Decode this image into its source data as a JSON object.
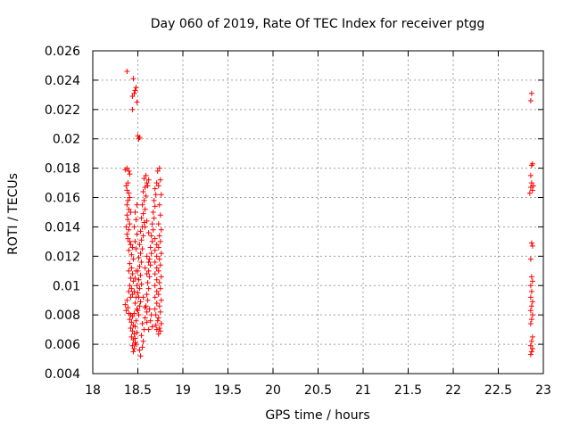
{
  "chart_data": {
    "type": "scatter",
    "title": "Day 060 of 2019, Rate Of TEC Index for receiver ptgg",
    "xlabel": "GPS time / hours",
    "ylabel": "ROTI / TECUs",
    "xlim": [
      18,
      23
    ],
    "ylim": [
      0.004,
      0.026
    ],
    "xticks": [
      "18",
      "18.5",
      "19",
      "19.5",
      "20",
      "20.5",
      "21",
      "21.5",
      "22",
      "22.5",
      "23"
    ],
    "yticks": [
      "0.004",
      "0.006",
      "0.008",
      "0.01",
      "0.012",
      "0.014",
      "0.016",
      "0.018",
      "0.02",
      "0.022",
      "0.024",
      "0.026"
    ],
    "grid": true,
    "marker": "+",
    "series_color": "#ff0000",
    "series": [
      {
        "name": "ROTI",
        "points": [
          [
            18.38,
            0.0246
          ],
          [
            18.45,
            0.0241
          ],
          [
            18.47,
            0.0233
          ],
          [
            18.46,
            0.0231
          ],
          [
            18.44,
            0.0229
          ],
          [
            18.48,
            0.0235
          ],
          [
            18.49,
            0.0225
          ],
          [
            18.44,
            0.022
          ],
          [
            18.5,
            0.0202
          ],
          [
            18.51,
            0.02
          ],
          [
            18.52,
            0.0201
          ],
          [
            18.38,
            0.018
          ],
          [
            18.4,
            0.0178
          ],
          [
            18.36,
            0.0179
          ],
          [
            18.41,
            0.0176
          ],
          [
            18.39,
            0.017
          ],
          [
            18.37,
            0.0168
          ],
          [
            18.38,
            0.0165
          ],
          [
            18.4,
            0.0163
          ],
          [
            18.41,
            0.016
          ],
          [
            18.39,
            0.0158
          ],
          [
            18.38,
            0.0155
          ],
          [
            18.4,
            0.0152
          ],
          [
            18.42,
            0.015
          ],
          [
            18.38,
            0.0148
          ],
          [
            18.39,
            0.0145
          ],
          [
            18.41,
            0.0142
          ],
          [
            18.37,
            0.014
          ],
          [
            18.4,
            0.0138
          ],
          [
            18.38,
            0.0135
          ],
          [
            18.39,
            0.0132
          ],
          [
            18.41,
            0.013
          ],
          [
            18.42,
            0.0128
          ],
          [
            18.44,
            0.0126
          ],
          [
            18.4,
            0.0124
          ],
          [
            18.43,
            0.0121
          ],
          [
            18.45,
            0.0118
          ],
          [
            18.41,
            0.0115
          ],
          [
            18.43,
            0.0112
          ],
          [
            18.4,
            0.011
          ],
          [
            18.44,
            0.0108
          ],
          [
            18.42,
            0.0105
          ],
          [
            18.45,
            0.0103
          ],
          [
            18.41,
            0.01
          ],
          [
            18.43,
            0.0098
          ],
          [
            18.4,
            0.0096
          ],
          [
            18.44,
            0.0094
          ],
          [
            18.42,
            0.0092
          ],
          [
            18.38,
            0.009
          ],
          [
            18.36,
            0.0087
          ],
          [
            18.39,
            0.0085
          ],
          [
            18.37,
            0.0083
          ],
          [
            18.4,
            0.0081
          ],
          [
            18.42,
            0.008
          ],
          [
            18.44,
            0.0079
          ],
          [
            18.41,
            0.0077
          ],
          [
            18.43,
            0.0075
          ],
          [
            18.45,
            0.0073
          ],
          [
            18.42,
            0.0071
          ],
          [
            18.44,
            0.0069
          ],
          [
            18.46,
            0.0067
          ],
          [
            18.43,
            0.0065
          ],
          [
            18.45,
            0.0063
          ],
          [
            18.47,
            0.0061
          ],
          [
            18.44,
            0.0059
          ],
          [
            18.46,
            0.0057
          ],
          [
            18.45,
            0.0055
          ],
          [
            18.48,
            0.006
          ],
          [
            18.47,
            0.0064
          ],
          [
            18.49,
            0.0068
          ],
          [
            18.47,
            0.0072
          ],
          [
            18.48,
            0.0076
          ],
          [
            18.51,
            0.008
          ],
          [
            18.5,
            0.0083
          ],
          [
            18.52,
            0.0086
          ],
          [
            18.53,
            0.0089
          ],
          [
            18.51,
            0.0092
          ],
          [
            18.5,
            0.0095
          ],
          [
            18.52,
            0.0098
          ],
          [
            18.54,
            0.0101
          ],
          [
            18.51,
            0.0104
          ],
          [
            18.53,
            0.0107
          ],
          [
            18.5,
            0.011
          ],
          [
            18.52,
            0.0113
          ],
          [
            18.54,
            0.0116
          ],
          [
            18.51,
            0.0119
          ],
          [
            18.53,
            0.0122
          ],
          [
            18.55,
            0.0125
          ],
          [
            18.52,
            0.0128
          ],
          [
            18.54,
            0.0131
          ],
          [
            18.56,
            0.0134
          ],
          [
            18.53,
            0.0137
          ],
          [
            18.55,
            0.014
          ],
          [
            18.57,
            0.0143
          ],
          [
            18.54,
            0.0146
          ],
          [
            18.56,
            0.0149
          ],
          [
            18.58,
            0.0152
          ],
          [
            18.55,
            0.0155
          ],
          [
            18.57,
            0.0158
          ],
          [
            18.59,
            0.0161
          ],
          [
            18.56,
            0.0164
          ],
          [
            18.58,
            0.0167
          ],
          [
            18.6,
            0.017
          ],
          [
            18.57,
            0.0173
          ],
          [
            18.59,
            0.0175
          ],
          [
            18.62,
            0.0172
          ],
          [
            18.61,
            0.0168
          ],
          [
            18.52,
            0.0056
          ],
          [
            18.53,
            0.0052
          ],
          [
            18.55,
            0.0058
          ],
          [
            18.56,
            0.0062
          ],
          [
            18.54,
            0.0066
          ],
          [
            18.57,
            0.007
          ],
          [
            18.55,
            0.0074
          ],
          [
            18.58,
            0.0078
          ],
          [
            18.6,
            0.0082
          ],
          [
            18.59,
            0.0086
          ],
          [
            18.61,
            0.009
          ],
          [
            18.6,
            0.0094
          ],
          [
            18.62,
            0.0098
          ],
          [
            18.61,
            0.0102
          ],
          [
            18.63,
            0.0106
          ],
          [
            18.62,
            0.011
          ],
          [
            18.64,
            0.0114
          ],
          [
            18.63,
            0.0118
          ],
          [
            18.65,
            0.0122
          ],
          [
            18.64,
            0.0126
          ],
          [
            18.66,
            0.013
          ],
          [
            18.65,
            0.0134
          ],
          [
            18.67,
            0.0138
          ],
          [
            18.66,
            0.0142
          ],
          [
            18.68,
            0.0146
          ],
          [
            18.67,
            0.015
          ],
          [
            18.69,
            0.0154
          ],
          [
            18.68,
            0.0158
          ],
          [
            18.7,
            0.0162
          ],
          [
            18.69,
            0.0166
          ],
          [
            18.71,
            0.017
          ],
          [
            18.72,
            0.0178
          ],
          [
            18.74,
            0.018
          ],
          [
            18.75,
            0.0172
          ],
          [
            18.73,
            0.0168
          ],
          [
            18.76,
            0.0162
          ],
          [
            18.74,
            0.0155
          ],
          [
            18.75,
            0.0148
          ],
          [
            18.73,
            0.0142
          ],
          [
            18.76,
            0.0138
          ],
          [
            18.74,
            0.0134
          ],
          [
            18.75,
            0.013
          ],
          [
            18.73,
            0.0126
          ],
          [
            18.76,
            0.0122
          ],
          [
            18.74,
            0.0118
          ],
          [
            18.75,
            0.0114
          ],
          [
            18.73,
            0.011
          ],
          [
            18.76,
            0.0106
          ],
          [
            18.74,
            0.0102
          ],
          [
            18.75,
            0.0098
          ],
          [
            18.73,
            0.0094
          ],
          [
            18.76,
            0.009
          ],
          [
            18.74,
            0.0086
          ],
          [
            18.75,
            0.0082
          ],
          [
            18.73,
            0.0078
          ],
          [
            18.76,
            0.0074
          ],
          [
            18.74,
            0.0071
          ],
          [
            18.75,
            0.0069
          ],
          [
            18.73,
            0.0067
          ],
          [
            18.71,
            0.007
          ],
          [
            18.7,
            0.0073
          ],
          [
            18.72,
            0.0076
          ],
          [
            18.7,
            0.008
          ],
          [
            18.69,
            0.0084
          ],
          [
            18.71,
            0.0088
          ],
          [
            18.69,
            0.0092
          ],
          [
            18.71,
            0.0096
          ],
          [
            18.69,
            0.01
          ],
          [
            18.71,
            0.0104
          ],
          [
            18.69,
            0.0108
          ],
          [
            18.71,
            0.0112
          ],
          [
            18.69,
            0.0116
          ],
          [
            18.71,
            0.012
          ],
          [
            18.69,
            0.0124
          ],
          [
            18.71,
            0.0128
          ],
          [
            18.69,
            0.0132
          ],
          [
            18.63,
            0.0084
          ],
          [
            18.65,
            0.008
          ],
          [
            18.64,
            0.0076
          ],
          [
            18.66,
            0.0072
          ],
          [
            18.62,
            0.007
          ],
          [
            18.6,
            0.0075
          ],
          [
            18.58,
            0.0085
          ],
          [
            18.56,
            0.0092
          ],
          [
            18.48,
            0.011
          ],
          [
            18.47,
            0.0105
          ],
          [
            18.49,
            0.01
          ],
          [
            18.46,
            0.0096
          ],
          [
            18.48,
            0.0092
          ],
          [
            18.47,
            0.0088
          ],
          [
            18.49,
            0.0084
          ],
          [
            18.46,
            0.0081
          ],
          [
            18.48,
            0.0125
          ],
          [
            18.47,
            0.013
          ],
          [
            18.49,
            0.0135
          ],
          [
            18.46,
            0.014
          ],
          [
            18.48,
            0.0145
          ],
          [
            18.47,
            0.015
          ],
          [
            18.49,
            0.0155
          ],
          [
            18.6,
            0.012
          ],
          [
            18.62,
            0.0116
          ],
          [
            18.58,
            0.0112
          ],
          [
            18.6,
            0.0108
          ],
          [
            18.62,
            0.0136
          ],
          [
            18.58,
            0.014
          ],
          [
            18.6,
            0.0144
          ],
          [
            22.87,
            0.0231
          ],
          [
            22.86,
            0.0226
          ],
          [
            22.88,
            0.0183
          ],
          [
            22.87,
            0.0182
          ],
          [
            22.86,
            0.0175
          ],
          [
            22.87,
            0.017
          ],
          [
            22.86,
            0.0167
          ],
          [
            22.88,
            0.0165
          ],
          [
            22.85,
            0.0163
          ],
          [
            22.89,
            0.0168
          ],
          [
            22.87,
            0.0129
          ],
          [
            22.88,
            0.0127
          ],
          [
            22.86,
            0.0118
          ],
          [
            22.87,
            0.0106
          ],
          [
            22.88,
            0.0103
          ],
          [
            22.86,
            0.01
          ],
          [
            22.87,
            0.0096
          ],
          [
            22.86,
            0.0092
          ],
          [
            22.88,
            0.0089
          ],
          [
            22.87,
            0.0086
          ],
          [
            22.86,
            0.0083
          ],
          [
            22.88,
            0.008
          ],
          [
            22.87,
            0.0077
          ],
          [
            22.86,
            0.0074
          ],
          [
            22.88,
            0.0065
          ],
          [
            22.87,
            0.0062
          ],
          [
            22.86,
            0.0059
          ],
          [
            22.88,
            0.0057
          ],
          [
            22.87,
            0.0055
          ],
          [
            22.86,
            0.0053
          ]
        ]
      }
    ]
  }
}
